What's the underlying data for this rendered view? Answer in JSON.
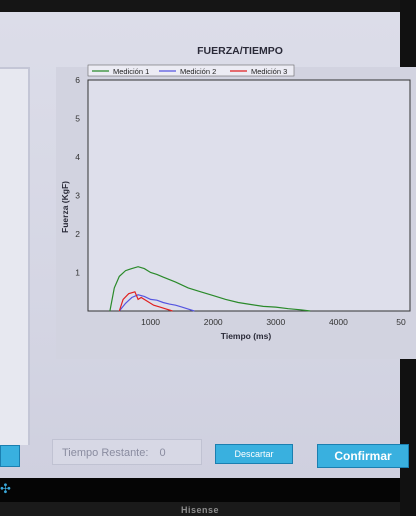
{
  "chart_data": {
    "type": "line",
    "title": "FUERZA/TIEMPO",
    "xlabel": "Tiempo (ms)",
    "ylabel": "Fuerza (KgF)",
    "xlim": [
      0,
      5000
    ],
    "ylim": [
      0,
      6
    ],
    "x_ticks": [
      "1000",
      "2000",
      "3000",
      "4000",
      "50"
    ],
    "y_ticks": [
      "1",
      "2",
      "3",
      "4",
      "5",
      "6"
    ],
    "legend_position": "top",
    "series": [
      {
        "name": "Medición 1",
        "color": "#2a8a2a",
        "x": [
          350,
          420,
          500,
          600,
          700,
          800,
          900,
          1000,
          1100,
          1200,
          1400,
          1600,
          1800,
          2000,
          2200,
          2400,
          2600,
          2800,
          3000,
          3200,
          3400,
          3550
        ],
        "y": [
          0.0,
          0.6,
          0.9,
          1.05,
          1.1,
          1.15,
          1.1,
          1.0,
          0.95,
          0.88,
          0.75,
          0.6,
          0.5,
          0.4,
          0.3,
          0.22,
          0.17,
          0.12,
          0.1,
          0.06,
          0.03,
          0.0
        ]
      },
      {
        "name": "Medición 2",
        "color": "#5555e0",
        "x": [
          500,
          600,
          700,
          800,
          900,
          1000,
          1100,
          1200,
          1300,
          1400,
          1500,
          1600,
          1700
        ],
        "y": [
          0.0,
          0.2,
          0.35,
          0.42,
          0.38,
          0.3,
          0.28,
          0.22,
          0.18,
          0.15,
          0.1,
          0.05,
          0.0
        ]
      },
      {
        "name": "Medición 3",
        "color": "#e02020",
        "x": [
          500,
          560,
          650,
          750,
          800,
          850,
          950,
          1050,
          1150,
          1250,
          1350
        ],
        "y": [
          0.0,
          0.3,
          0.45,
          0.5,
          0.3,
          0.35,
          0.25,
          0.15,
          0.1,
          0.05,
          0.0
        ]
      }
    ]
  },
  "controls": {
    "tiempo_label": "Tiempo Restante:",
    "tiempo_value": "0",
    "descartar_label": "Descartar",
    "confirmar_label": "Confirmar"
  },
  "device": {
    "brand": "Hisense",
    "taskbar_icon": "dots-icon"
  }
}
